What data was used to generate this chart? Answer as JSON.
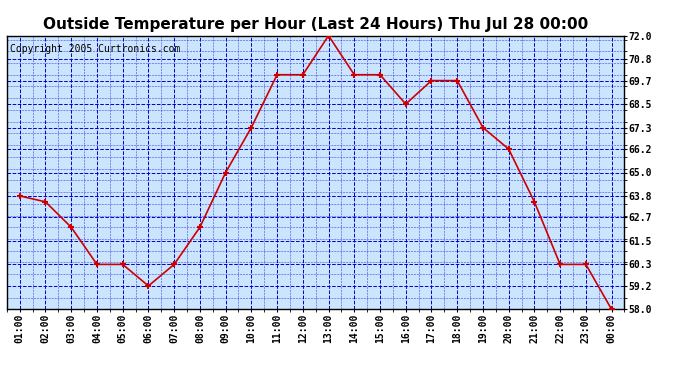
{
  "title": "Outside Temperature per Hour (Last 24 Hours) Thu Jul 28 00:00",
  "copyright": "Copyright 2005 Curtronics.com",
  "x_labels": [
    "01:00",
    "02:00",
    "03:00",
    "04:00",
    "05:00",
    "06:00",
    "07:00",
    "08:00",
    "09:00",
    "10:00",
    "11:00",
    "12:00",
    "13:00",
    "14:00",
    "15:00",
    "16:00",
    "17:00",
    "18:00",
    "19:00",
    "20:00",
    "21:00",
    "22:00",
    "23:00",
    "00:00"
  ],
  "y_values": [
    63.8,
    63.5,
    62.2,
    60.3,
    60.3,
    59.2,
    60.3,
    62.2,
    65.0,
    67.3,
    70.0,
    70.0,
    72.0,
    70.0,
    70.0,
    68.5,
    69.7,
    69.7,
    67.3,
    66.2,
    63.5,
    60.3,
    60.3,
    58.0
  ],
  "y_min": 58.0,
  "y_max": 72.0,
  "y_ticks": [
    58.0,
    59.2,
    60.3,
    61.5,
    62.7,
    63.8,
    65.0,
    66.2,
    67.3,
    68.5,
    69.7,
    70.8,
    72.0
  ],
  "line_color": "#cc0000",
  "marker_color": "#cc0000",
  "bg_color": "#cce5ff",
  "fig_bg_color": "#ffffff",
  "grid_color": "#0000cc",
  "title_fontsize": 11,
  "copyright_fontsize": 7,
  "tick_fontsize": 7,
  "border_color": "#000000"
}
